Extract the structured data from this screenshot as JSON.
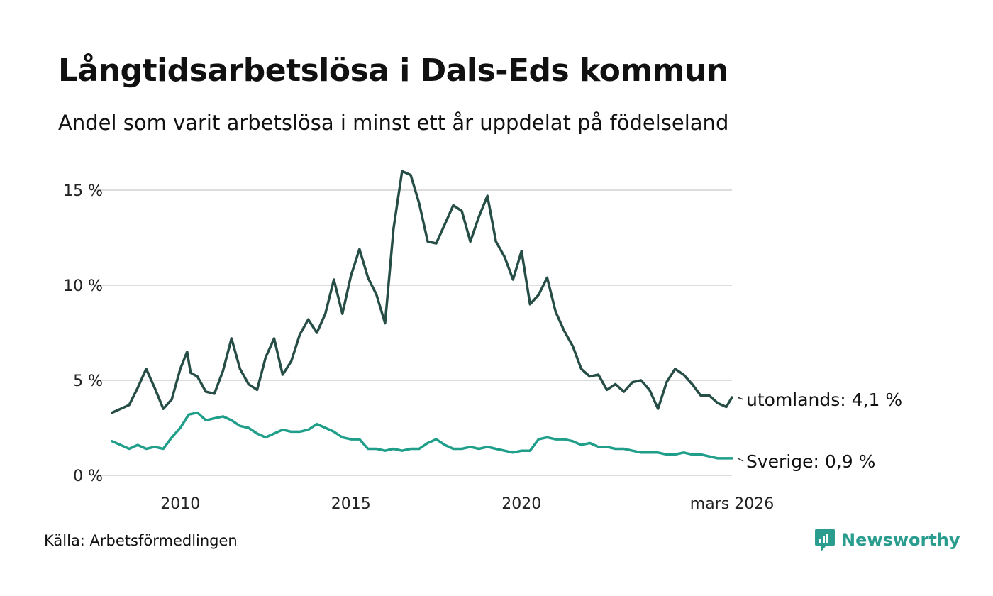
{
  "title": "Långtidsarbetslösa i Dals-Eds kommun",
  "subtitle": "Andel som varit arbetslösa i minst ett år uppdelat på födelseland",
  "source": "Källa: Arbetsförmedlingen",
  "brand": "Newsworthy",
  "colors": {
    "utomlands": "#264e46",
    "sverige": "#1f9e8a",
    "grid": "#dddddd",
    "brand": "#2a9d8f"
  },
  "chart_data": {
    "type": "line",
    "title": "Långtidsarbetslösa i Dals-Eds kommun",
    "xlabel": "",
    "ylabel": "",
    "xlim": [
      2008.0,
      2026.167
    ],
    "ylim": [
      0,
      16
    ],
    "y_ticks": [
      0,
      5,
      10,
      15
    ],
    "y_tick_labels": [
      "0 %",
      "5 %",
      "10 %",
      "15 %"
    ],
    "x_ticks": [
      2010,
      2015,
      2020,
      2026.167
    ],
    "x_tick_labels": [
      "2010",
      "2015",
      "2020",
      "mars 2026"
    ],
    "grid": true,
    "series": [
      {
        "name": "utomlands",
        "end_label": "utomlands: 4,1 %",
        "x": [
          2008.0,
          2008.5,
          2008.75,
          2009.0,
          2009.25,
          2009.5,
          2009.75,
          2010.0,
          2010.2,
          2010.3,
          2010.5,
          2010.75,
          2011.0,
          2011.25,
          2011.5,
          2011.75,
          2012.0,
          2012.25,
          2012.5,
          2012.75,
          2013.0,
          2013.25,
          2013.5,
          2013.75,
          2014.0,
          2014.25,
          2014.5,
          2014.75,
          2015.0,
          2015.25,
          2015.5,
          2015.75,
          2016.0,
          2016.25,
          2016.5,
          2016.75,
          2017.0,
          2017.25,
          2017.5,
          2017.75,
          2018.0,
          2018.25,
          2018.5,
          2018.75,
          2019.0,
          2019.25,
          2019.5,
          2019.75,
          2020.0,
          2020.25,
          2020.5,
          2020.75,
          2021.0,
          2021.25,
          2021.5,
          2021.75,
          2022.0,
          2022.25,
          2022.5,
          2022.75,
          2023.0,
          2023.25,
          2023.5,
          2023.75,
          2024.0,
          2024.25,
          2024.5,
          2024.75,
          2025.0,
          2025.25,
          2025.5,
          2025.75,
          2026.0,
          2026.167
        ],
        "values": [
          3.3,
          3.7,
          4.6,
          5.6,
          4.6,
          3.5,
          4.0,
          5.6,
          6.5,
          5.4,
          5.2,
          4.4,
          4.3,
          5.5,
          7.2,
          5.6,
          4.8,
          4.5,
          6.2,
          7.2,
          5.3,
          6.0,
          7.4,
          8.2,
          7.5,
          8.5,
          10.3,
          8.5,
          10.5,
          11.9,
          10.4,
          9.5,
          8.0,
          13.0,
          16.0,
          15.8,
          14.3,
          12.3,
          12.2,
          13.2,
          14.2,
          13.9,
          12.3,
          13.6,
          14.7,
          12.3,
          11.5,
          10.3,
          11.8,
          9.0,
          9.5,
          10.4,
          8.6,
          7.6,
          6.8,
          5.6,
          5.2,
          5.3,
          4.5,
          4.8,
          4.4,
          4.9,
          5.0,
          4.5,
          3.5,
          4.9,
          5.6,
          5.3,
          4.8,
          4.2,
          4.2,
          3.8,
          3.6,
          4.1
        ]
      },
      {
        "name": "Sverige",
        "end_label": "Sverige: 0,9 %",
        "x": [
          2008.0,
          2008.5,
          2008.75,
          2009.0,
          2009.25,
          2009.5,
          2009.75,
          2010.0,
          2010.25,
          2010.5,
          2010.75,
          2011.0,
          2011.25,
          2011.5,
          2011.75,
          2012.0,
          2012.25,
          2012.5,
          2012.75,
          2013.0,
          2013.25,
          2013.5,
          2013.75,
          2014.0,
          2014.25,
          2014.5,
          2014.75,
          2015.0,
          2015.25,
          2015.5,
          2015.75,
          2016.0,
          2016.25,
          2016.5,
          2016.75,
          2017.0,
          2017.25,
          2017.5,
          2017.75,
          2018.0,
          2018.25,
          2018.5,
          2018.75,
          2019.0,
          2019.25,
          2019.5,
          2019.75,
          2020.0,
          2020.25,
          2020.5,
          2020.75,
          2021.0,
          2021.25,
          2021.5,
          2021.75,
          2022.0,
          2022.25,
          2022.5,
          2022.75,
          2023.0,
          2023.25,
          2023.5,
          2023.75,
          2024.0,
          2024.25,
          2024.5,
          2024.75,
          2025.0,
          2025.25,
          2025.5,
          2025.75,
          2026.0,
          2026.167
        ],
        "values": [
          1.8,
          1.4,
          1.6,
          1.4,
          1.5,
          1.4,
          2.0,
          2.5,
          3.2,
          3.3,
          2.9,
          3.0,
          3.1,
          2.9,
          2.6,
          2.5,
          2.2,
          2.0,
          2.2,
          2.4,
          2.3,
          2.3,
          2.4,
          2.7,
          2.5,
          2.3,
          2.0,
          1.9,
          1.9,
          1.4,
          1.4,
          1.3,
          1.4,
          1.3,
          1.4,
          1.4,
          1.7,
          1.9,
          1.6,
          1.4,
          1.4,
          1.5,
          1.4,
          1.5,
          1.4,
          1.3,
          1.2,
          1.3,
          1.3,
          1.9,
          2.0,
          1.9,
          1.9,
          1.8,
          1.6,
          1.7,
          1.5,
          1.5,
          1.4,
          1.4,
          1.3,
          1.2,
          1.2,
          1.2,
          1.1,
          1.1,
          1.2,
          1.1,
          1.1,
          1.0,
          0.9,
          0.9,
          0.9
        ]
      }
    ]
  }
}
